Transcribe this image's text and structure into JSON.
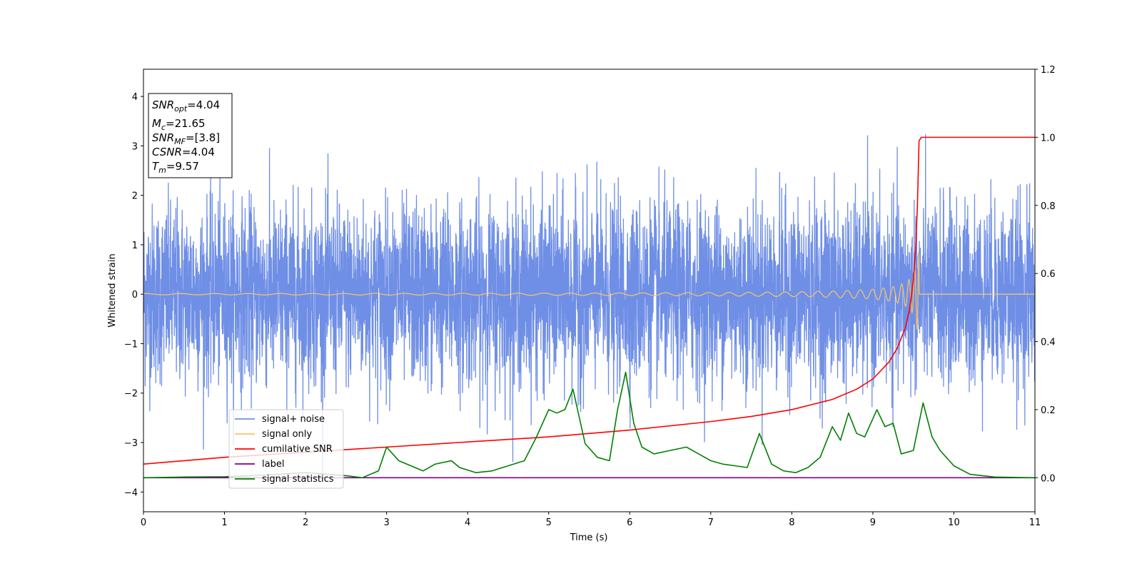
{
  "chart_data": {
    "type": "line",
    "xlabel": "Time (s)",
    "ylabel": "Whitened strain",
    "xlim": [
      0,
      11
    ],
    "ylim_left": [
      -4.4,
      4.55
    ],
    "ylim_right": [
      -0.1,
      1.2
    ],
    "x_ticks": [
      0,
      1,
      2,
      3,
      4,
      5,
      6,
      7,
      8,
      9,
      10,
      11
    ],
    "y_left_ticks": [
      -4,
      -3,
      -2,
      -1,
      0,
      1,
      2,
      3,
      4
    ],
    "y_left_tick_labels": [
      "−4",
      "−3",
      "−2",
      "−1",
      "0",
      "1",
      "2",
      "3",
      "4"
    ],
    "y_right_ticks": [
      0.0,
      0.2,
      0.4,
      0.6,
      0.8,
      1.0,
      1.2
    ],
    "y_right_tick_labels": [
      "0.0",
      "0.2",
      "0.4",
      "0.6",
      "0.8",
      "1.0",
      "1.2"
    ],
    "grid": false,
    "legend_position": "lower-left",
    "info_box": {
      "snr_opt": {
        "main": "SNR",
        "sub": "opt",
        "value": "=4.04"
      },
      "mc": {
        "main": "M",
        "sub": "c",
        "value": "=21.65"
      },
      "snr_mf": {
        "main": "SNR",
        "sub": "MF",
        "value": "=[3.8]"
      },
      "csnr": {
        "main": "CSNR",
        "value": "=4.04"
      },
      "tm": {
        "main": "T",
        "sub": "m",
        "value": "=9.57"
      }
    },
    "merger_time": 9.57,
    "series": [
      {
        "name": "signal+ noise",
        "color": "#6f8fe6",
        "axis": "left",
        "kind": "gaussian noise, std ~0.9, peaks ~±4"
      },
      {
        "name": "signal only",
        "color": "#f5c36b",
        "axis": "left",
        "kind": "chirp growing to amplitude ~0.85 at t=9.57"
      },
      {
        "name": "cumilative SNR",
        "color": "#ff0000",
        "axis": "right",
        "x": [
          0,
          1,
          2,
          3,
          4,
          5,
          6,
          7,
          7.5,
          8,
          8.5,
          8.8,
          9,
          9.2,
          9.3,
          9.4,
          9.45,
          9.5,
          9.53,
          9.55,
          9.57,
          9.6,
          11
        ],
        "y": [
          0.04,
          0.06,
          0.075,
          0.09,
          0.105,
          0.12,
          0.14,
          0.165,
          0.18,
          0.2,
          0.23,
          0.26,
          0.29,
          0.34,
          0.38,
          0.44,
          0.49,
          0.58,
          0.68,
          0.8,
          0.99,
          1.0,
          1.0
        ]
      },
      {
        "name": "label",
        "color": "#800080",
        "axis": "right",
        "x": [
          0,
          11
        ],
        "y": [
          0.0,
          0.0
        ]
      },
      {
        "name": "signal statistics",
        "color": "#008000",
        "axis": "right",
        "x": [
          0,
          0.5,
          1,
          1.5,
          2,
          2.5,
          2.7,
          2.9,
          3.0,
          3.15,
          3.3,
          3.45,
          3.6,
          3.8,
          3.9,
          4.1,
          4.3,
          4.5,
          4.7,
          4.85,
          5.0,
          5.1,
          5.2,
          5.3,
          5.45,
          5.6,
          5.75,
          5.85,
          5.95,
          6.05,
          6.15,
          6.3,
          6.5,
          6.7,
          6.85,
          7.0,
          7.15,
          7.3,
          7.45,
          7.6,
          7.75,
          7.9,
          8.05,
          8.2,
          8.35,
          8.5,
          8.6,
          8.7,
          8.8,
          8.9,
          9.05,
          9.15,
          9.25,
          9.35,
          9.5,
          9.62,
          9.73,
          9.83,
          10.0,
          10.2,
          10.5,
          11
        ],
        "y": [
          0.0,
          0.002,
          0.003,
          0.008,
          0.015,
          0.006,
          0.0,
          0.02,
          0.09,
          0.05,
          0.035,
          0.02,
          0.04,
          0.05,
          0.03,
          0.015,
          0.02,
          0.035,
          0.05,
          0.12,
          0.2,
          0.19,
          0.2,
          0.26,
          0.1,
          0.06,
          0.05,
          0.2,
          0.31,
          0.16,
          0.09,
          0.07,
          0.08,
          0.09,
          0.07,
          0.05,
          0.04,
          0.035,
          0.03,
          0.13,
          0.04,
          0.02,
          0.015,
          0.03,
          0.06,
          0.15,
          0.11,
          0.19,
          0.13,
          0.12,
          0.2,
          0.15,
          0.16,
          0.07,
          0.08,
          0.22,
          0.12,
          0.08,
          0.035,
          0.01,
          0.002,
          0.0
        ]
      }
    ]
  }
}
